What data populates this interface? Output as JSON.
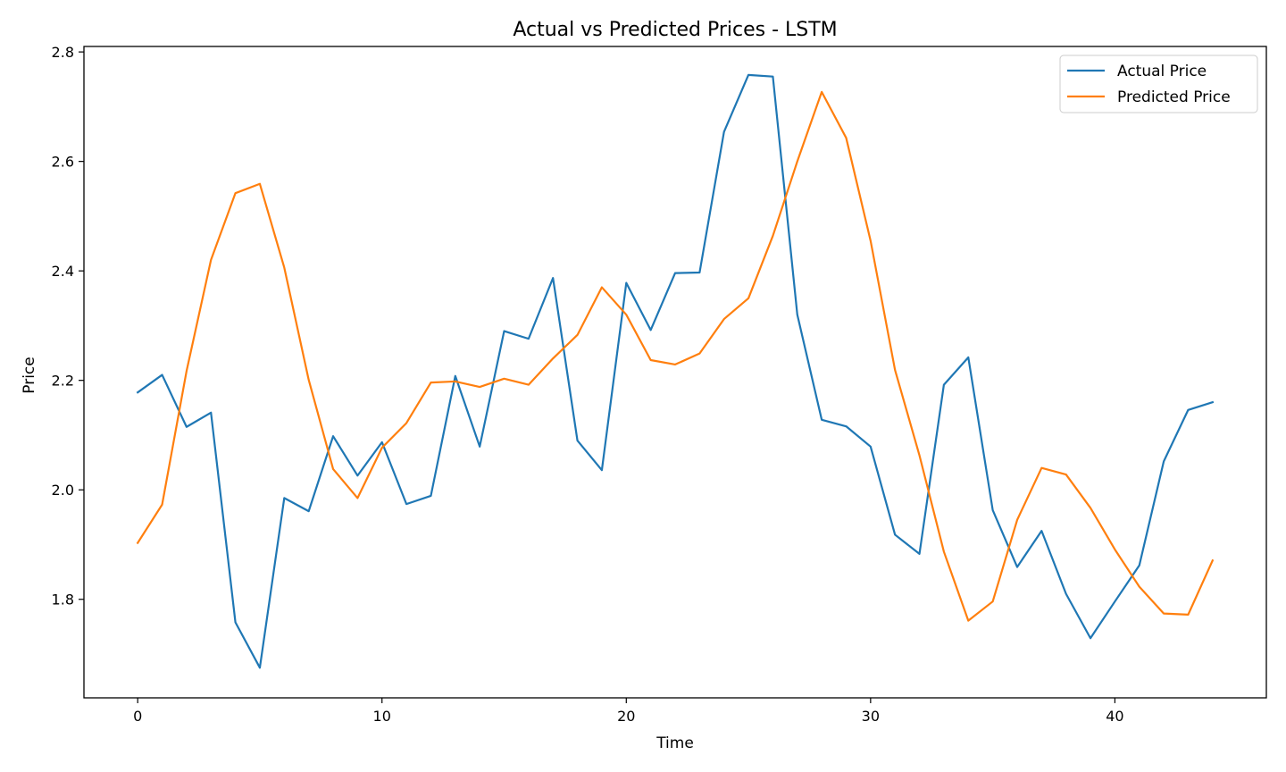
{
  "chart_data": {
    "type": "line",
    "title": "Actual vs Predicted Prices - LSTM",
    "xlabel": "Time",
    "ylabel": "Price",
    "xlim": [
      -2.2,
      46.2
    ],
    "ylim": [
      1.62,
      2.81
    ],
    "xticks": [
      0,
      10,
      20,
      30,
      40
    ],
    "yticks": [
      1.8,
      2.0,
      2.2,
      2.4,
      2.6,
      2.8
    ],
    "ytick_labels": [
      "1.8",
      "2.0",
      "2.2",
      "2.4",
      "2.6",
      "2.8"
    ],
    "grid": false,
    "legend_position": "top-right",
    "x": [
      0,
      1,
      2,
      3,
      4,
      5,
      6,
      7,
      8,
      9,
      10,
      11,
      12,
      13,
      14,
      15,
      16,
      17,
      18,
      19,
      20,
      21,
      22,
      23,
      24,
      25,
      26,
      27,
      28,
      29,
      30,
      31,
      32,
      33,
      34,
      35,
      36,
      37,
      38,
      39,
      40,
      41,
      42,
      43,
      44
    ],
    "series": [
      {
        "name": "Actual Price",
        "color": "#1f77b4",
        "values": [
          2.178,
          2.21,
          2.115,
          2.141,
          1.758,
          1.675,
          1.985,
          1.961,
          2.098,
          2.026,
          2.087,
          1.974,
          1.989,
          2.208,
          2.079,
          2.29,
          2.276,
          2.387,
          2.09,
          2.036,
          2.378,
          2.292,
          2.396,
          2.397,
          2.654,
          2.758,
          2.755,
          2.32,
          2.128,
          2.116,
          2.079,
          1.918,
          1.883,
          2.192,
          2.242,
          1.963,
          1.859,
          1.925,
          1.81,
          1.729,
          1.796,
          1.862,
          2.052,
          2.146,
          2.16
        ]
      },
      {
        "name": "Predicted Price",
        "color": "#ff7f0e",
        "values": [
          1.903,
          1.973,
          2.217,
          2.42,
          2.542,
          2.559,
          2.406,
          2.201,
          2.038,
          1.985,
          2.077,
          2.122,
          2.196,
          2.198,
          2.188,
          2.203,
          2.192,
          2.24,
          2.283,
          2.37,
          2.32,
          2.237,
          2.229,
          2.249,
          2.312,
          2.35,
          2.464,
          2.6,
          2.727,
          2.643,
          2.455,
          2.219,
          2.063,
          1.887,
          1.761,
          1.796,
          1.945,
          2.04,
          2.028,
          1.967,
          1.891,
          1.823,
          1.774,
          1.772,
          1.871
        ]
      }
    ]
  }
}
